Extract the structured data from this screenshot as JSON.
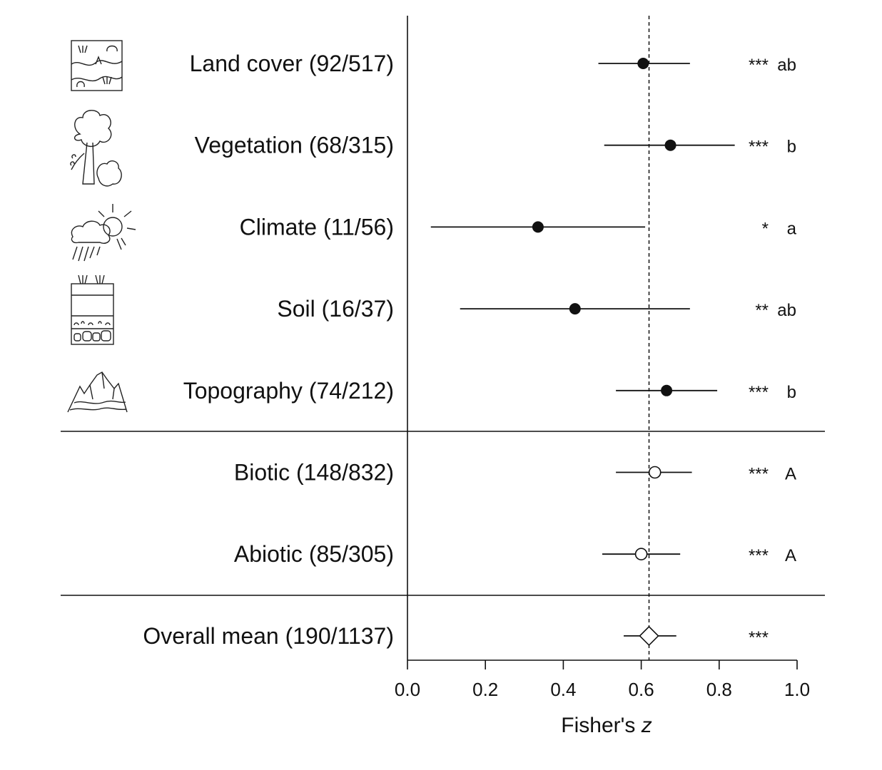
{
  "chart_data": {
    "type": "forest",
    "xlabel": "Fisher's",
    "xlabel_italic": "z",
    "xlim": [
      0,
      1
    ],
    "xticks": [
      "0.0",
      "0.2",
      "0.4",
      "0.6",
      "0.8",
      "1.0"
    ],
    "xtick_values": [
      0,
      0.2,
      0.4,
      0.6,
      0.8,
      1.0
    ],
    "reference_line": 0.62,
    "rows": [
      {
        "label": "Land cover (92/517)",
        "mean": 0.605,
        "lo": 0.49,
        "hi": 0.725,
        "marker": "filled-circle",
        "sig": "***",
        "letter": "ab",
        "icon": "land-cover-icon"
      },
      {
        "label": "Vegetation (68/315)",
        "mean": 0.675,
        "lo": 0.505,
        "hi": 0.84,
        "marker": "filled-circle",
        "sig": "***",
        "letter": "b",
        "icon": "vegetation-icon"
      },
      {
        "label": "Climate (11/56)",
        "mean": 0.335,
        "lo": 0.06,
        "hi": 0.61,
        "marker": "filled-circle",
        "sig": "*",
        "letter": "a",
        "icon": "climate-icon"
      },
      {
        "label": "Soil (16/37)",
        "mean": 0.43,
        "lo": 0.135,
        "hi": 0.725,
        "marker": "filled-circle",
        "sig": "**",
        "letter": "ab",
        "icon": "soil-icon"
      },
      {
        "label": "Topography (74/212)",
        "mean": 0.665,
        "lo": 0.535,
        "hi": 0.795,
        "marker": "filled-circle",
        "sig": "***",
        "letter": "b",
        "icon": "topography-icon"
      },
      {
        "label": "Biotic (148/832)",
        "mean": 0.635,
        "lo": 0.535,
        "hi": 0.73,
        "marker": "open-circle",
        "sig": "***",
        "letter": "A"
      },
      {
        "label": "Abiotic (85/305)",
        "mean": 0.6,
        "lo": 0.5,
        "hi": 0.7,
        "marker": "open-circle",
        "sig": "***",
        "letter": "A"
      },
      {
        "label": "Overall mean (190/1137)",
        "mean": 0.62,
        "lo": 0.555,
        "hi": 0.69,
        "marker": "open-diamond",
        "sig": "***",
        "letter": ""
      }
    ]
  }
}
